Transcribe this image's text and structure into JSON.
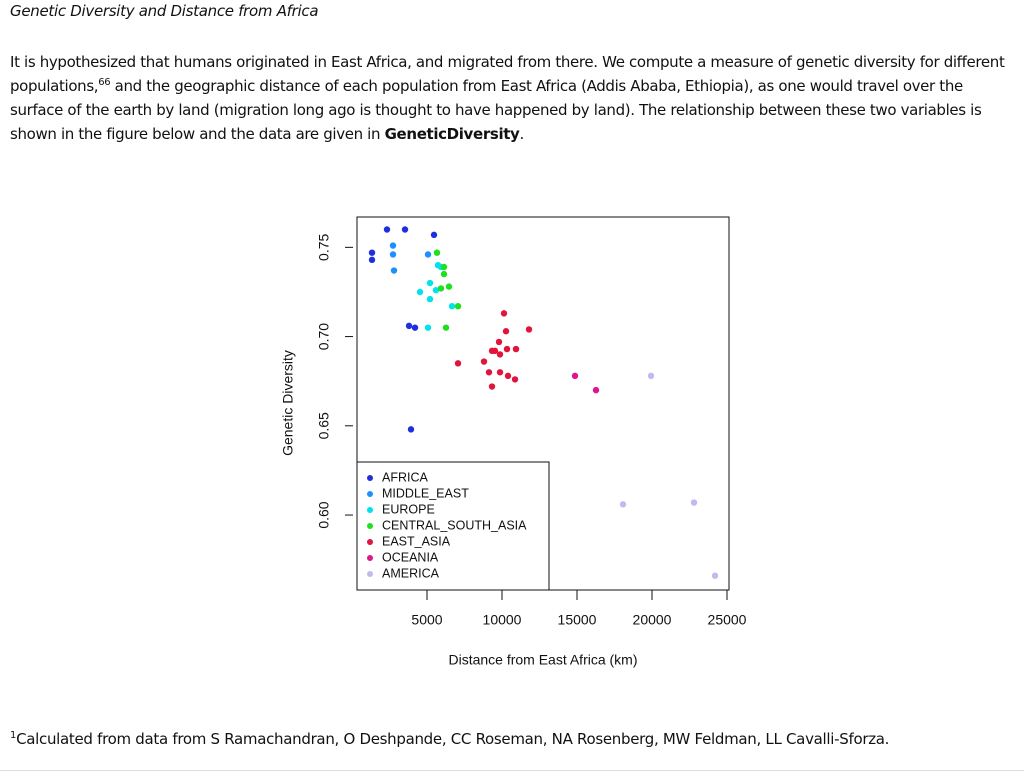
{
  "title": "Genetic Diversity and Distance from Africa",
  "paragraph": {
    "text_1": "It is hypothesized that humans originated in East Africa, and migrated from there. We compute a measure of genetic diversity for different populations,",
    "sup": "66",
    "text_2": " and the geographic distance of each population from East Africa (Addis Ababa, Ethiopia), as one would travel over the surface of the earth by land (migration long ago is thought to have happened by land). The relationship between these two variables is shown in the figure below and the data are given in ",
    "bold": "GeneticDiversity",
    "text_3": "."
  },
  "chart_data": {
    "type": "scatter",
    "x_label": "Distance from East Africa (km)",
    "y_label": "Genetic Diversity",
    "xlim": [
      333,
      25133
    ],
    "ylim": [
      0.558,
      0.767
    ],
    "xticks": [
      5000,
      10000,
      15000,
      20000,
      25000
    ],
    "yticks": [
      {
        "value": 0.6,
        "label": "0.60"
      },
      0.65,
      {
        "value": 0.7,
        "label": "0.70"
      },
      0.75
    ],
    "grid": false,
    "legend": "bottom-left",
    "series": [
      {
        "name": "AFRICA",
        "color": "#1f2fe0",
        "x": [
          2333,
          3533,
          5467,
          1333,
          1333,
          3800,
          4200,
          3933
        ],
        "values": [
          0.76,
          0.76,
          0.757,
          0.747,
          0.743,
          0.706,
          0.705,
          0.648
        ]
      },
      {
        "name": "MIDDLE_EAST",
        "color": "#1e8fff",
        "x": [
          2733,
          2733,
          2800,
          5067
        ],
        "values": [
          0.751,
          0.746,
          0.737,
          0.746
        ]
      },
      {
        "name": "EUROPE",
        "color": "#00e3ee",
        "x": [
          5733,
          4533,
          5200,
          5200,
          5600,
          5067,
          6667,
          5933
        ],
        "values": [
          0.74,
          0.725,
          0.73,
          0.721,
          0.726,
          0.705,
          0.717,
          0.739
        ]
      },
      {
        "name": "CENTRAL_SOUTH_ASIA",
        "color": "#1ee01e",
        "x": [
          5667,
          6133,
          6133,
          6467,
          6267,
          7067,
          5933
        ],
        "values": [
          0.747,
          0.739,
          0.735,
          0.728,
          0.705,
          0.717,
          0.727
        ]
      },
      {
        "name": "EAST_ASIA",
        "color": "#e0143c",
        "x": [
          10133,
          10267,
          11800,
          9800,
          9333,
          9867,
          10333,
          10933,
          8800,
          7067,
          9133,
          9867,
          10400,
          10867,
          9333,
          9533
        ],
        "values": [
          0.713,
          0.703,
          0.704,
          0.697,
          0.692,
          0.69,
          0.693,
          0.693,
          0.686,
          0.685,
          0.68,
          0.68,
          0.678,
          0.676,
          0.672,
          0.692
        ]
      },
      {
        "name": "OCEANIA",
        "color": "#e0148c",
        "x": [
          14867,
          16267
        ],
        "values": [
          0.678,
          0.67
        ]
      },
      {
        "name": "AMERICA",
        "color": "#c4b8f0",
        "x": [
          19933,
          18067,
          22800,
          24200
        ],
        "values": [
          0.678,
          0.606,
          0.607,
          0.566
        ]
      }
    ]
  },
  "footnote": {
    "marker": "1",
    "text": "Calculated from data from S Ramachandran, O Deshpande, CC Roseman, NA Rosenberg, MW Feldman, LL Cavalli-Sforza."
  }
}
